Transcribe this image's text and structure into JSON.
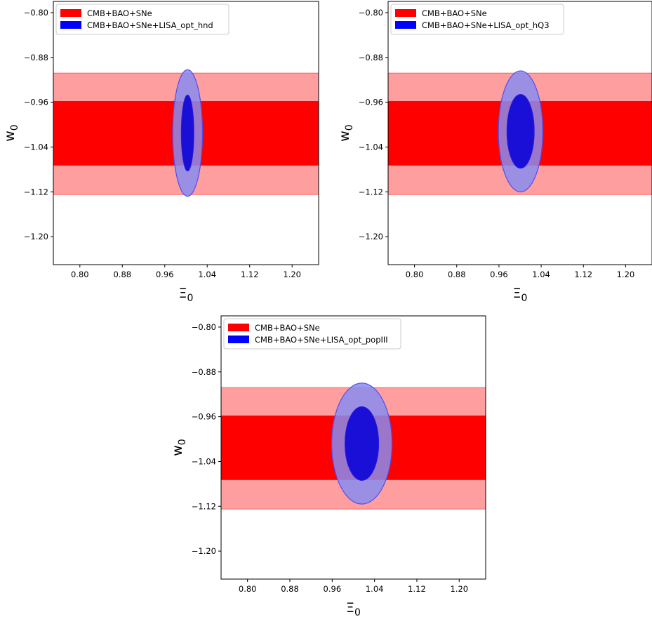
{
  "chart_data": [
    {
      "type": "contour",
      "xlabel_main": "Ξ",
      "xlabel_sub": "0",
      "ylabel_main": "w",
      "ylabel_sub": "0",
      "xlim": [
        0.75,
        1.25
      ],
      "ylim": [
        -1.25,
        -0.78
      ],
      "xticks": [
        "0.80",
        "0.88",
        "0.96",
        "1.04",
        "1.12",
        "1.20"
      ],
      "yticks": [
        "−0.80",
        "−0.88",
        "−0.96",
        "−1.04",
        "−1.12",
        "−1.20"
      ],
      "xtick_values": [
        0.8,
        0.88,
        0.96,
        1.04,
        1.12,
        1.2
      ],
      "ytick_values": [
        -0.8,
        -0.88,
        -0.96,
        -1.04,
        -1.12,
        -1.2
      ],
      "legend_position": "upper-left",
      "series": [
        {
          "name": "CMB+BAO+SNe",
          "color": "#ff0000",
          "kind": "band",
          "inner": [
            -1.073,
            -0.958
          ],
          "outer": [
            -1.125,
            -0.908
          ]
        },
        {
          "name": "CMB+BAO+SNe+LISA_opt_hnd",
          "color": "#0000ff",
          "kind": "ellipse",
          "center": [
            1.003,
            -1.015
          ],
          "inner_halfwidth": [
            0.012,
            0.068
          ],
          "outer_halfwidth": [
            0.028,
            0.113
          ]
        }
      ]
    },
    {
      "type": "contour",
      "xlabel_main": "Ξ",
      "xlabel_sub": "0",
      "ylabel_main": "w",
      "ylabel_sub": "0",
      "xlim": [
        0.75,
        1.25
      ],
      "ylim": [
        -1.25,
        -0.78
      ],
      "xticks": [
        "0.80",
        "0.88",
        "0.96",
        "1.04",
        "1.12",
        "1.20"
      ],
      "yticks": [
        "−0.80",
        "−0.88",
        "−0.96",
        "−1.04",
        "−1.12",
        "−1.20"
      ],
      "xtick_values": [
        0.8,
        0.88,
        0.96,
        1.04,
        1.12,
        1.2
      ],
      "ytick_values": [
        -0.8,
        -0.88,
        -0.96,
        -1.04,
        -1.12,
        -1.2
      ],
      "legend_position": "upper-left",
      "series": [
        {
          "name": "CMB+BAO+SNe",
          "color": "#ff0000",
          "kind": "band",
          "inner": [
            -1.073,
            -0.958
          ],
          "outer": [
            -1.125,
            -0.908
          ]
        },
        {
          "name": "CMB+BAO+SNe+LISA_opt_hQ3",
          "color": "#0000ff",
          "kind": "ellipse",
          "center": [
            1.001,
            -1.012
          ],
          "inner_halfwidth": [
            0.026,
            0.066
          ],
          "outer_halfwidth": [
            0.042,
            0.108
          ]
        }
      ]
    },
    {
      "type": "contour",
      "xlabel_main": "Ξ",
      "xlabel_sub": "0",
      "ylabel_main": "w",
      "ylabel_sub": "0",
      "xlim": [
        0.75,
        1.25
      ],
      "ylim": [
        -1.25,
        -0.78
      ],
      "xticks": [
        "0.80",
        "0.88",
        "0.96",
        "1.04",
        "1.12",
        "1.20"
      ],
      "yticks": [
        "−0.80",
        "−0.88",
        "−0.96",
        "−1.04",
        "−1.12",
        "−1.20"
      ],
      "xtick_values": [
        0.8,
        0.88,
        0.96,
        1.04,
        1.12,
        1.2
      ],
      "ytick_values": [
        -0.8,
        -0.88,
        -0.96,
        -1.04,
        -1.12,
        -1.2
      ],
      "legend_position": "upper-left",
      "series": [
        {
          "name": "CMB+BAO+SNe",
          "color": "#ff0000",
          "kind": "band",
          "inner": [
            -1.073,
            -0.958
          ],
          "outer": [
            -1.125,
            -0.908
          ]
        },
        {
          "name": "CMB+BAO+SNe+LISA_opt_popIII",
          "color": "#0000ff",
          "kind": "ellipse",
          "center": [
            1.016,
            -1.008
          ],
          "inner_halfwidth": [
            0.032,
            0.066
          ],
          "outer_halfwidth": [
            0.057,
            0.108
          ]
        }
      ]
    }
  ]
}
